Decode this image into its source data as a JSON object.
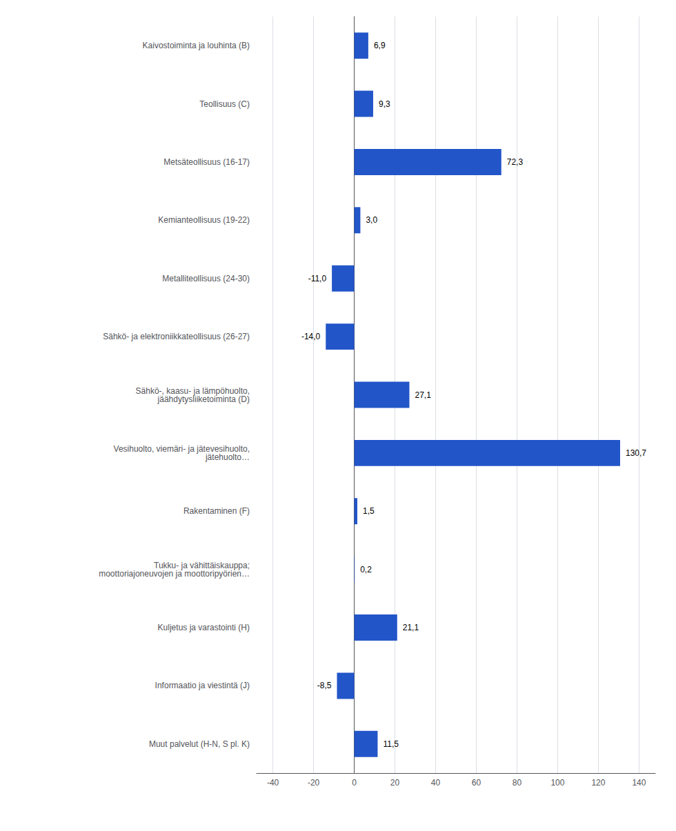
{
  "chart_data": {
    "type": "bar",
    "orientation": "horizontal",
    "categories": [
      "Kaivostoiminta ja louhinta (B)",
      "Teollisuus (C)",
      "Metsäteollisuus (16-17)",
      "Kemianteollisuus (19-22)",
      "Metalliteollisuus (24-30)",
      "Sähkö- ja elektroniikkateollisuus (26-27)",
      "Sähkö-, kaasu- ja lämpöhuolto,\njäähdytysliiketoiminta (D)",
      "Vesihuolto, viemäri- ja jätevesihuolto,\njätehuolto…",
      "Rakentaminen (F)",
      "Tukku- ja vähittäiskauppa;\nmoottoriajoneuvojen ja moottoripyörien…",
      "Kuljetus ja varastointi (H)",
      "Informaatio ja viestintä (J)",
      "Muut palvelut (H-N, S pl. K)"
    ],
    "values": [
      6.9,
      9.3,
      72.3,
      3.0,
      -11.0,
      -14.0,
      27.1,
      130.7,
      1.5,
      0.2,
      21.1,
      -8.5,
      11.5
    ],
    "value_labels": [
      "6,9",
      "9,3",
      "72,3",
      "3,0",
      "-11,0",
      "-14,0",
      "27,1",
      "130,7",
      "1,5",
      "0,2",
      "21,1",
      "-8,5",
      "11,5"
    ],
    "color": "#2255c8",
    "xlim": [
      -48,
      148
    ],
    "xticks": [
      -40,
      -20,
      0,
      20,
      40,
      60,
      80,
      100,
      120,
      140
    ],
    "grid": true,
    "data_labels": true
  }
}
